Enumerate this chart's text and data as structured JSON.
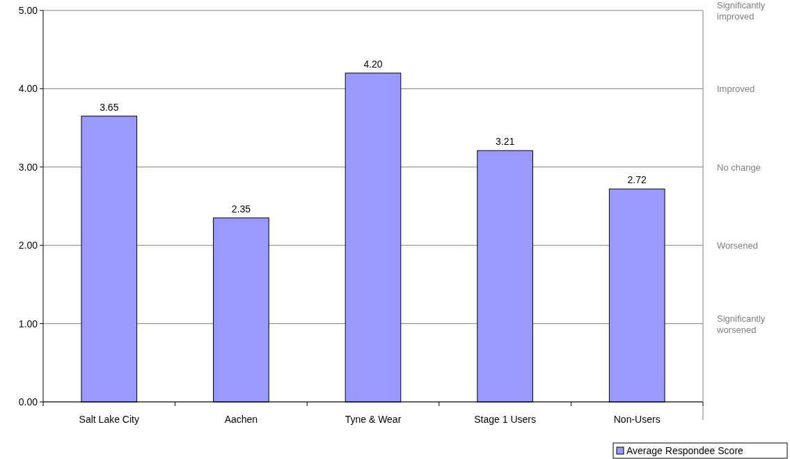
{
  "chart_data": {
    "type": "bar",
    "categories": [
      "Salt Lake City",
      "Aachen",
      "Tyne & Wear",
      "Stage 1 Users",
      "Non-Users"
    ],
    "series": [
      {
        "name": "Average Respondee Score",
        "color": "#9999ff",
        "values": [
          3.65,
          2.35,
          4.2,
          3.21,
          2.72
        ]
      }
    ],
    "ylim": [
      0,
      5
    ],
    "yticks": [
      {
        "value": 0,
        "label": "0.00"
      },
      {
        "value": 1,
        "label": "1.00"
      },
      {
        "value": 2,
        "label": "2.00"
      },
      {
        "value": 3,
        "label": "3.00"
      },
      {
        "value": 4,
        "label": "4.00"
      },
      {
        "value": 5,
        "label": "5.00"
      }
    ],
    "annotations": [
      "Significantly worsened",
      "Worsened",
      "No change",
      "Improved",
      "Significantly improved"
    ],
    "value_labels": [
      "3.65",
      "2.35",
      "4.20",
      "3.21",
      "2.72"
    ],
    "grid": "y",
    "legend": "bottom right"
  }
}
